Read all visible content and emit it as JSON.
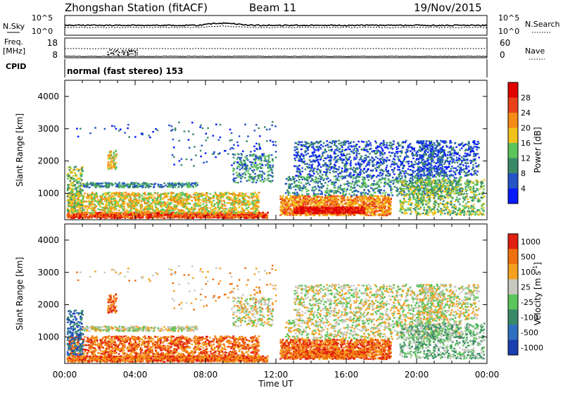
{
  "header": {
    "station": "Zhongshan Station (fitACF)",
    "beam": "Beam 11",
    "date": "19/Nov/2015"
  },
  "noise_panel": {
    "left_label": "N.Sky",
    "left_ticks": [
      "10^5",
      "10^0"
    ],
    "right_label": "N.Search",
    "right_ticks": [
      "10^5",
      "10^0"
    ]
  },
  "freq_panel": {
    "left_label_1": "Freq.",
    "left_label_2": "[MHz]",
    "left_ticks": [
      "18",
      "8"
    ],
    "right_label": "Nave",
    "right_ticks": [
      "60",
      "0"
    ]
  },
  "cpid_panel": {
    "left_label": "CPID",
    "text": "normal (fast stereo) 153"
  },
  "colors": {
    "power": [
      "#0a1aff",
      "#2554c7",
      "#3a8a6a",
      "#5cc45c",
      "#f0c21a",
      "#f58a16",
      "#e8421a",
      "#e00000"
    ],
    "velocity": [
      "#1a3fb0",
      "#2f6fc0",
      "#3a8a6a",
      "#5cc45c",
      "#c8c8c0",
      "#f5a020",
      "#f07010",
      "#e02010"
    ]
  },
  "chart_data": [
    {
      "type": "heatmap",
      "parameter": "Power",
      "ylabel": "Slant Range [km]",
      "ylim": [
        180,
        4500
      ],
      "yticks": [
        "1000",
        "2000",
        "3000",
        "4000"
      ],
      "xlim": [
        0,
        24
      ],
      "colorbar": {
        "label": "Power [dB]",
        "range": [
          0,
          32
        ],
        "ticks": [
          "4",
          "8",
          "12",
          "16",
          "20",
          "24",
          "28"
        ]
      }
    },
    {
      "type": "heatmap",
      "parameter": "Velocity",
      "ylabel": "Slant Range [km]",
      "ylim": [
        180,
        4500
      ],
      "yticks": [
        "1000",
        "2000",
        "3000",
        "4000"
      ],
      "xlim": [
        0,
        24
      ],
      "xticks": [
        "00:00",
        "04:00",
        "08:00",
        "12:00",
        "16:00",
        "20:00",
        "00:00"
      ],
      "xlabel": "Time UT",
      "colorbar": {
        "label": "Velocity [m s",
        "label_sup": "-1",
        "ticks": [
          "1000",
          "500",
          "100",
          "25",
          "-25",
          "-100",
          "-500",
          "-1000"
        ]
      }
    }
  ]
}
